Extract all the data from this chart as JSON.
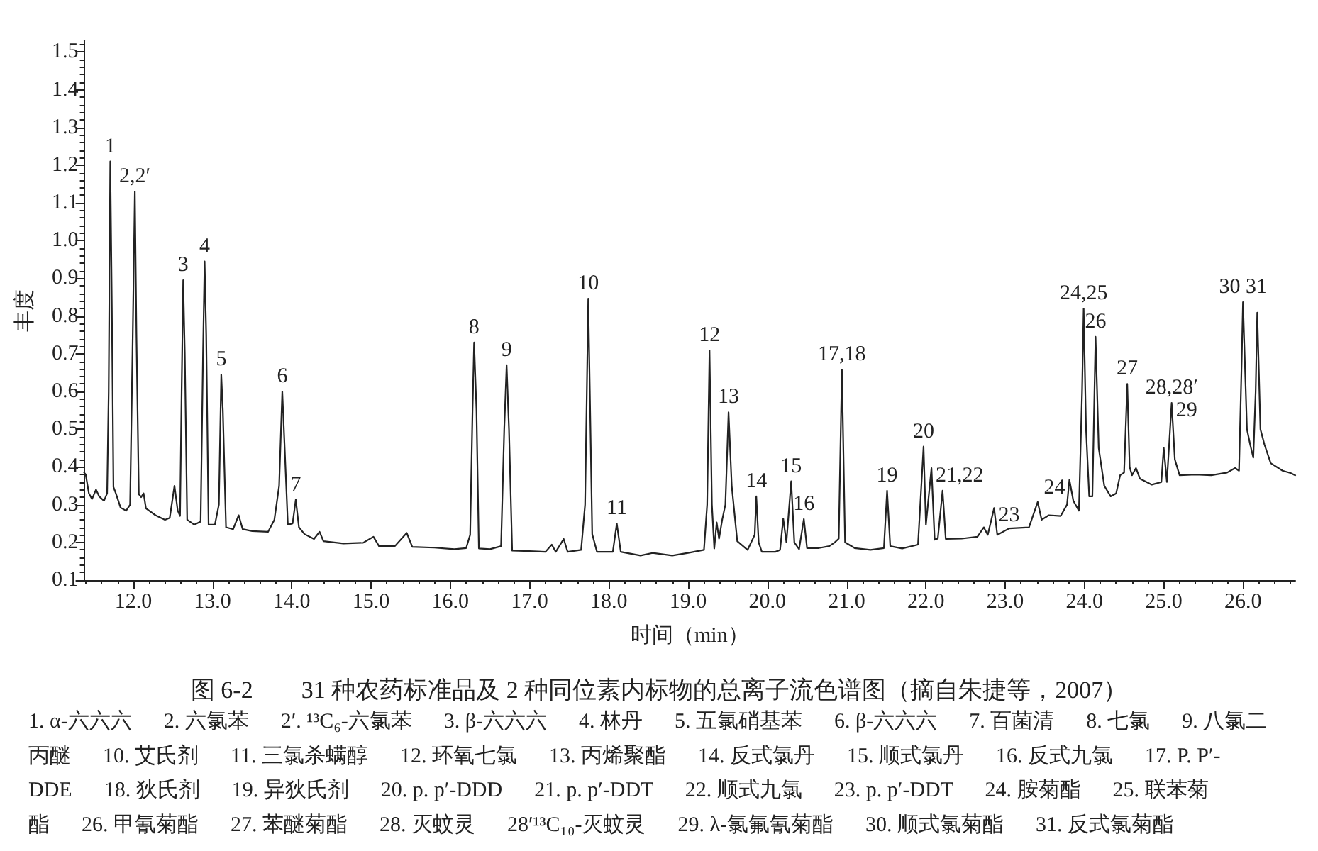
{
  "chart_data": {
    "type": "line",
    "title": "图 6-2　　31 种农药标准品及 2 种同位素内标物的总离子流色谱图（摘自朱捷等，2007）",
    "xlabel": "时间（min）",
    "ylabel": "丰度",
    "color": "#222222",
    "xlim": [
      11.38,
      26.66
    ],
    "ylim": [
      0.1,
      1.53
    ],
    "xticks": [
      {
        "value": 11.4,
        "label": null
      },
      {
        "value": 11.6,
        "label": null
      },
      {
        "value": 11.8,
        "label": null
      },
      {
        "value": 12,
        "label": "12.0"
      },
      {
        "value": 12.2,
        "label": null
      },
      {
        "value": 12.4,
        "label": null
      },
      {
        "value": 12.6,
        "label": null
      },
      {
        "value": 12.8,
        "label": null
      },
      {
        "value": 13,
        "label": "13.0"
      },
      {
        "value": 13.2,
        "label": null
      },
      {
        "value": 13.4,
        "label": null
      },
      {
        "value": 13.6,
        "label": null
      },
      {
        "value": 13.8,
        "label": null
      },
      {
        "value": 14,
        "label": "14.0"
      },
      {
        "value": 14.2,
        "label": null
      },
      {
        "value": 14.4,
        "label": null
      },
      {
        "value": 14.6,
        "label": null
      },
      {
        "value": 14.8,
        "label": null
      },
      {
        "value": 15,
        "label": "15.0"
      },
      {
        "value": 15.2,
        "label": null
      },
      {
        "value": 15.4,
        "label": null
      },
      {
        "value": 15.6,
        "label": null
      },
      {
        "value": 15.8,
        "label": null
      },
      {
        "value": 16,
        "label": "16.0"
      },
      {
        "value": 16.2,
        "label": null
      },
      {
        "value": 16.4,
        "label": null
      },
      {
        "value": 16.6,
        "label": null
      },
      {
        "value": 16.8,
        "label": null
      },
      {
        "value": 17,
        "label": "17.0"
      },
      {
        "value": 17.2,
        "label": null
      },
      {
        "value": 17.4,
        "label": null
      },
      {
        "value": 17.6,
        "label": null
      },
      {
        "value": 17.8,
        "label": null
      },
      {
        "value": 18,
        "label": "18.0"
      },
      {
        "value": 18.2,
        "label": null
      },
      {
        "value": 18.4,
        "label": null
      },
      {
        "value": 18.6,
        "label": null
      },
      {
        "value": 18.8,
        "label": null
      },
      {
        "value": 19,
        "label": "19.0"
      },
      {
        "value": 19.2,
        "label": null
      },
      {
        "value": 19.4,
        "label": null
      },
      {
        "value": 19.6,
        "label": null
      },
      {
        "value": 19.8,
        "label": null
      },
      {
        "value": 20,
        "label": "20.0"
      },
      {
        "value": 20.2,
        "label": null
      },
      {
        "value": 20.4,
        "label": null
      },
      {
        "value": 20.6,
        "label": null
      },
      {
        "value": 20.8,
        "label": null
      },
      {
        "value": 21,
        "label": "21.0"
      },
      {
        "value": 21.2,
        "label": null
      },
      {
        "value": 21.4,
        "label": null
      },
      {
        "value": 21.6,
        "label": null
      },
      {
        "value": 21.8,
        "label": null
      },
      {
        "value": 22,
        "label": "22.0"
      },
      {
        "value": 22.2,
        "label": null
      },
      {
        "value": 22.4,
        "label": null
      },
      {
        "value": 22.6,
        "label": null
      },
      {
        "value": 22.8,
        "label": null
      },
      {
        "value": 23,
        "label": "23.0"
      },
      {
        "value": 23.2,
        "label": null
      },
      {
        "value": 23.4,
        "label": null
      },
      {
        "value": 23.6,
        "label": null
      },
      {
        "value": 23.8,
        "label": null
      },
      {
        "value": 24,
        "label": "24.0"
      },
      {
        "value": 24.2,
        "label": null
      },
      {
        "value": 24.4,
        "label": null
      },
      {
        "value": 24.6,
        "label": null
      },
      {
        "value": 24.8,
        "label": null
      },
      {
        "value": 25,
        "label": "25.0"
      },
      {
        "value": 25.2,
        "label": null
      },
      {
        "value": 25.4,
        "label": null
      },
      {
        "value": 25.6,
        "label": null
      },
      {
        "value": 25.8,
        "label": null
      },
      {
        "value": 26,
        "label": "26.0"
      },
      {
        "value": 26.2,
        "label": null
      },
      {
        "value": 26.4,
        "label": null
      },
      {
        "value": 26.6,
        "label": null
      }
    ],
    "yticks": [
      0.1,
      {
        "value": 0.12,
        "label": null
      },
      {
        "value": 0.14,
        "label": null
      },
      {
        "value": 0.16,
        "label": null
      },
      {
        "value": 0.18,
        "label": null
      },
      0.2,
      {
        "value": 0.22,
        "label": null
      },
      {
        "value": 0.24,
        "label": null
      },
      {
        "value": 0.26,
        "label": null
      },
      {
        "value": 0.28,
        "label": null
      },
      0.3,
      {
        "value": 0.32,
        "label": null
      },
      {
        "value": 0.34,
        "label": null
      },
      {
        "value": 0.36,
        "label": null
      },
      {
        "value": 0.38,
        "label": null
      },
      0.4,
      {
        "value": 0.42,
        "label": null
      },
      {
        "value": 0.44,
        "label": null
      },
      {
        "value": 0.46,
        "label": null
      },
      {
        "value": 0.48,
        "label": null
      },
      0.5,
      {
        "value": 0.52,
        "label": null
      },
      {
        "value": 0.54,
        "label": null
      },
      {
        "value": 0.56,
        "label": null
      },
      {
        "value": 0.58,
        "label": null
      },
      0.6,
      {
        "value": 0.62,
        "label": null
      },
      {
        "value": 0.64,
        "label": null
      },
      {
        "value": 0.66,
        "label": null
      },
      {
        "value": 0.68,
        "label": null
      },
      0.7,
      {
        "value": 0.72,
        "label": null
      },
      {
        "value": 0.74,
        "label": null
      },
      {
        "value": 0.76,
        "label": null
      },
      {
        "value": 0.78,
        "label": null
      },
      0.8,
      {
        "value": 0.82,
        "label": null
      },
      {
        "value": 0.84,
        "label": null
      },
      {
        "value": 0.86,
        "label": null
      },
      {
        "value": 0.88,
        "label": null
      },
      0.9,
      {
        "value": 0.92,
        "label": null
      },
      {
        "value": 0.94,
        "label": null
      },
      {
        "value": 0.96,
        "label": null
      },
      {
        "value": 0.98,
        "label": null
      },
      {
        "value": 1,
        "label": "1.0"
      },
      {
        "value": 1.02,
        "label": null
      },
      {
        "value": 1.04,
        "label": null
      },
      {
        "value": 1.06,
        "label": null
      },
      {
        "value": 1.08,
        "label": null
      },
      1.1,
      {
        "value": 1.12,
        "label": null
      },
      {
        "value": 1.14,
        "label": null
      },
      {
        "value": 1.16,
        "label": null
      },
      {
        "value": 1.18,
        "label": null
      },
      1.2,
      {
        "value": 1.22,
        "label": null
      },
      {
        "value": 1.24,
        "label": null
      },
      {
        "value": 1.26,
        "label": null
      },
      {
        "value": 1.28,
        "label": null
      },
      1.3,
      {
        "value": 1.32,
        "label": null
      },
      {
        "value": 1.34,
        "label": null
      },
      {
        "value": 1.36,
        "label": null
      },
      {
        "value": 1.38,
        "label": null
      },
      1.4,
      {
        "value": 1.42,
        "label": null
      },
      {
        "value": 1.44,
        "label": null
      },
      {
        "value": 1.46,
        "label": null
      },
      {
        "value": 1.48,
        "label": null
      },
      1.5,
      {
        "value": 1.52,
        "label": null
      }
    ],
    "x": [
      11.38,
      11.4,
      11.44,
      11.48,
      11.53,
      11.57,
      11.63,
      11.67,
      11.69,
      11.71,
      11.73,
      11.75,
      11.78,
      11.84,
      11.91,
      11.96,
      11.99,
      12.02,
      12.04,
      12.07,
      12.1,
      12.13,
      12.16,
      12.28,
      12.4,
      12.46,
      12.52,
      12.56,
      12.59,
      12.61,
      12.63,
      12.65,
      12.68,
      12.77,
      12.85,
      12.88,
      12.9,
      12.92,
      12.95,
      13.03,
      13.08,
      13.11,
      13.13,
      13.17,
      13.26,
      13.33,
      13.38,
      13.5,
      13.7,
      13.78,
      13.84,
      13.88,
      13.91,
      13.95,
      14.01,
      14.05,
      14.09,
      14.16,
      14.28,
      14.35,
      14.4,
      14.65,
      14.9,
      15.03,
      15.1,
      15.3,
      15.45,
      15.52,
      15.8,
      16.05,
      16.2,
      16.25,
      16.28,
      16.3,
      16.33,
      16.36,
      16.5,
      16.64,
      16.68,
      16.71,
      16.74,
      16.78,
      17.0,
      17.2,
      17.28,
      17.33,
      17.43,
      17.48,
      17.65,
      17.7,
      17.74,
      17.76,
      17.79,
      17.85,
      18.05,
      18.1,
      18.15,
      18.4,
      18.55,
      18.8,
      19.0,
      19.2,
      19.24,
      19.27,
      19.3,
      19.33,
      19.36,
      19.39,
      19.43,
      19.47,
      19.51,
      19.55,
      19.62,
      19.75,
      19.84,
      19.86,
      19.89,
      19.93,
      20.1,
      20.16,
      20.2,
      20.24,
      20.3,
      20.34,
      20.4,
      20.46,
      20.5,
      20.65,
      20.78,
      20.85,
      20.9,
      20.94,
      20.98,
      21.1,
      21.3,
      21.47,
      21.51,
      21.55,
      21.7,
      21.9,
      21.97,
      22.0,
      22.07,
      22.11,
      22.15,
      22.21,
      22.25,
      22.45,
      22.65,
      22.73,
      22.78,
      22.86,
      22.9,
      23.05,
      23.3,
      23.41,
      23.46,
      23.55,
      23.7,
      23.78,
      23.81,
      23.86,
      23.93,
      23.97,
      23.99,
      24.02,
      24.06,
      24.1,
      24.14,
      24.18,
      24.25,
      24.33,
      24.4,
      24.45,
      24.5,
      24.54,
      24.57,
      24.6,
      24.65,
      24.7,
      24.85,
      24.97,
      25.0,
      25.04,
      25.1,
      25.14,
      25.2,
      25.4,
      25.6,
      25.8,
      25.9,
      25.95,
      25.98,
      26.0,
      26.05,
      26.09,
      26.13,
      26.16,
      26.18,
      26.22,
      26.27,
      26.35,
      26.5,
      26.6,
      26.66
    ],
    "values": [
      0.385,
      0.38,
      0.33,
      0.315,
      0.34,
      0.322,
      0.31,
      0.33,
      0.6,
      1.21,
      0.82,
      0.347,
      0.33,
      0.292,
      0.284,
      0.3,
      0.7,
      1.13,
      0.75,
      0.328,
      0.32,
      0.33,
      0.29,
      0.272,
      0.26,
      0.265,
      0.35,
      0.285,
      0.27,
      0.6,
      0.895,
      0.7,
      0.26,
      0.247,
      0.255,
      0.7,
      0.945,
      0.75,
      0.247,
      0.247,
      0.3,
      0.645,
      0.55,
      0.24,
      0.235,
      0.272,
      0.235,
      0.23,
      0.228,
      0.26,
      0.35,
      0.6,
      0.45,
      0.247,
      0.25,
      0.313,
      0.24,
      0.222,
      0.209,
      0.228,
      0.203,
      0.197,
      0.199,
      0.215,
      0.19,
      0.19,
      0.225,
      0.188,
      0.186,
      0.182,
      0.185,
      0.22,
      0.55,
      0.73,
      0.55,
      0.184,
      0.182,
      0.19,
      0.5,
      0.67,
      0.5,
      0.178,
      0.177,
      0.175,
      0.194,
      0.175,
      0.209,
      0.175,
      0.18,
      0.3,
      0.846,
      0.6,
      0.222,
      0.175,
      0.175,
      0.25,
      0.175,
      0.165,
      0.172,
      0.165,
      0.172,
      0.18,
      0.3,
      0.709,
      0.3,
      0.184,
      0.253,
      0.21,
      0.26,
      0.3,
      0.545,
      0.35,
      0.203,
      0.18,
      0.22,
      0.322,
      0.2,
      0.175,
      0.175,
      0.18,
      0.263,
      0.2,
      0.362,
      0.2,
      0.182,
      0.262,
      0.185,
      0.185,
      0.19,
      0.2,
      0.21,
      0.658,
      0.2,
      0.185,
      0.18,
      0.185,
      0.337,
      0.19,
      0.184,
      0.194,
      0.454,
      0.247,
      0.397,
      0.207,
      0.21,
      0.337,
      0.209,
      0.21,
      0.215,
      0.24,
      0.22,
      0.291,
      0.22,
      0.237,
      0.24,
      0.307,
      0.26,
      0.272,
      0.27,
      0.3,
      0.366,
      0.31,
      0.284,
      0.6,
      0.82,
      0.5,
      0.322,
      0.322,
      0.745,
      0.45,
      0.35,
      0.322,
      0.33,
      0.378,
      0.385,
      0.62,
      0.4,
      0.378,
      0.397,
      0.369,
      0.353,
      0.36,
      0.451,
      0.36,
      0.57,
      0.42,
      0.378,
      0.38,
      0.378,
      0.385,
      0.397,
      0.39,
      0.65,
      0.837,
      0.5,
      0.46,
      0.425,
      0.6,
      0.809,
      0.5,
      0.46,
      0.41,
      0.39,
      0.384,
      0.378
    ],
    "annotations": [
      {
        "text": "1",
        "x": 11.71,
        "y": 1.21
      },
      {
        "text": "2,2′",
        "x": 12.02,
        "y": 1.13
      },
      {
        "text": "3",
        "x": 12.63,
        "y": 0.895
      },
      {
        "text": "4",
        "x": 12.9,
        "y": 0.945
      },
      {
        "text": "5",
        "x": 13.11,
        "y": 0.645
      },
      {
        "text": "6",
        "x": 13.88,
        "y": 0.6
      },
      {
        "text": "7",
        "x": 14.05,
        "y": 0.313
      },
      {
        "text": "8",
        "x": 16.3,
        "y": 0.73
      },
      {
        "text": "9",
        "x": 16.71,
        "y": 0.67
      },
      {
        "text": "10",
        "x": 17.74,
        "y": 0.846
      },
      {
        "text": "11",
        "x": 18.1,
        "y": 0.25
      },
      {
        "text": "12",
        "x": 19.27,
        "y": 0.709
      },
      {
        "text": "13",
        "x": 19.51,
        "y": 0.545
      },
      {
        "text": "14",
        "x": 19.86,
        "y": 0.322
      },
      {
        "text": "15",
        "x": 20.3,
        "y": 0.362
      },
      {
        "text": "16",
        "x": 20.46,
        "y": 0.262
      },
      {
        "text": "17,18",
        "x": 20.94,
        "y": 0.658
      },
      {
        "text": "19",
        "x": 21.51,
        "y": 0.337
      },
      {
        "text": "20",
        "x": 21.97,
        "y": 0.454
      },
      {
        "text": "21,22",
        "x": 22.07,
        "y": 0.397
      },
      {
        "text": "23",
        "x": 22.86,
        "y": 0.291
      },
      {
        "text": "24",
        "x": 23.81,
        "y": 0.366
      },
      {
        "text": "24,25",
        "x": 23.99,
        "y": 0.82
      },
      {
        "text": "26",
        "x": 24.14,
        "y": 0.745
      },
      {
        "text": "27",
        "x": 24.54,
        "y": 0.62
      },
      {
        "text": "28,28′",
        "x": 25.1,
        "y": 0.57
      },
      {
        "text": "29",
        "x": 25.1,
        "y": 0.57
      },
      {
        "text": "30 31",
        "x": 26.0,
        "y": 0.837
      },
      "1. α-六六六　 2. 六氯苯　 2′. ¹³C₆-六氯苯　 3. β-六六六　 4. 林丹　 5. 五氯硝基苯　 6. β-六六六　 7. 百菌清　 8. 七氯　 9. 八氯二",
      "丙醚　 10. 艾氏剂　 11. 三氯杀螨醇　 12. 环氧七氯　 13. 丙烯聚酯　 14. 反式氯丹　 15. 顺式氯丹　 16. 反式九氯　 17. P. P′-",
      "DDE　 18. 狄氏剂　 19. 异狄氏剂　 20. p. p′-DDD　 21. p. p′-DDT　 22. 顺式九氯　 23. p. p′-DDT　 24. 胺菊酯　 25. 联苯菊",
      "酯　 26. 甲氰菊酯　 27. 苯醚菊酯　 28. 灭蚊灵　 28′¹³C₁₀-灭蚊灵　 29. λ-氯氟氰菊酯　 30. 顺式氯菊酯　 31. 反式氯菊酯"
    ]
  }
}
